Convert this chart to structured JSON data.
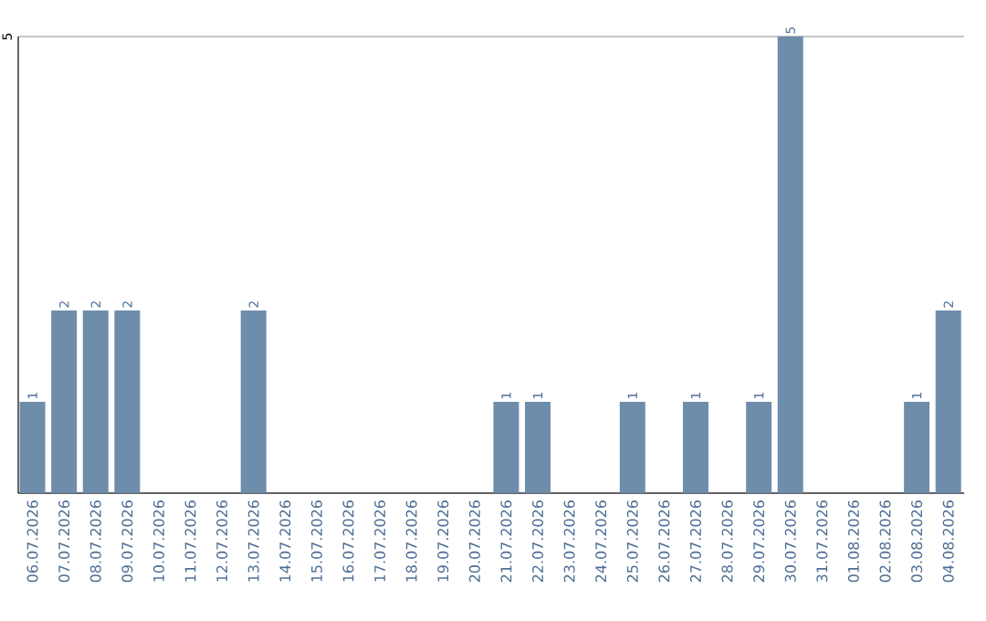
{
  "chart_data": {
    "type": "bar",
    "categories": [
      "06.07.2026",
      "07.07.2026",
      "08.07.2026",
      "09.07.2026",
      "10.07.2026",
      "11.07.2026",
      "12.07.2026",
      "13.07.2026",
      "14.07.2026",
      "15.07.2026",
      "16.07.2026",
      "17.07.2026",
      "18.07.2026",
      "19.07.2026",
      "20.07.2026",
      "21.07.2026",
      "22.07.2026",
      "23.07.2026",
      "24.07.2026",
      "25.07.2026",
      "26.07.2026",
      "27.07.2026",
      "28.07.2026",
      "29.07.2026",
      "30.07.2026",
      "31.07.2026",
      "01.08.2026",
      "02.08.2026",
      "03.08.2026",
      "04.08.2026"
    ],
    "values": [
      1,
      2,
      2,
      2,
      0,
      0,
      0,
      2,
      0,
      0,
      0,
      0,
      0,
      0,
      0,
      1,
      1,
      0,
      0,
      1,
      0,
      1,
      0,
      1,
      5,
      0,
      0,
      0,
      1,
      2
    ],
    "value_labels": [
      "1",
      "2",
      "2",
      "2",
      null,
      null,
      null,
      "2",
      null,
      null,
      null,
      null,
      null,
      null,
      null,
      "1",
      "1",
      null,
      null,
      "1",
      null,
      "1",
      null,
      "1",
      "5",
      null,
      null,
      null,
      "1",
      "2"
    ],
    "color": "#6e8dab",
    "ylim": [
      0,
      5
    ],
    "yticks": [
      {
        "value": 0,
        "label": null
      },
      5
    ],
    "grid": "y"
  }
}
